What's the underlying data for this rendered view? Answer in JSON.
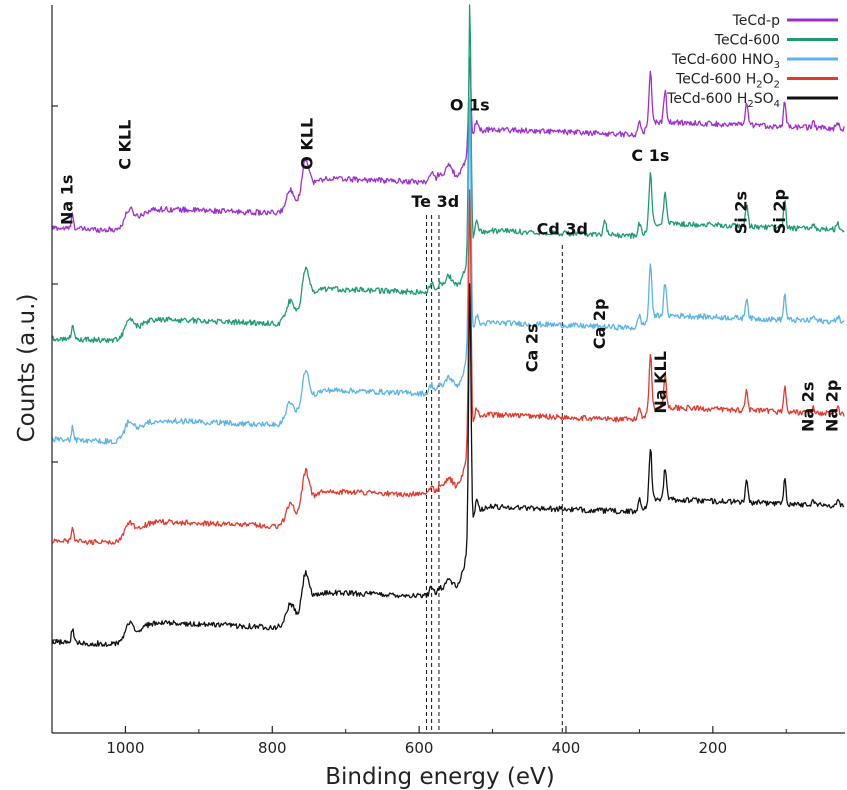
{
  "chart_data": {
    "type": "line",
    "xlabel": "Binding energy (eV)",
    "ylabel": "Counts (a.u.)",
    "xlim": [
      1100,
      20
    ],
    "x_reversed": true,
    "x_ticks": [
      1000,
      800,
      600,
      400,
      200
    ],
    "y_ticks_shown_without_labels": true,
    "grid": false,
    "legend": {
      "placement": "top-right"
    },
    "series": [
      {
        "name": "TeCd-p",
        "color": "#9b30d0",
        "offset": 0.9
      },
      {
        "name": "TeCd-600",
        "color": "#1e9b72",
        "offset": 0.66
      },
      {
        "name": "TeCd-600 HNO",
        "name_sub": "3",
        "color": "#5cb4e6",
        "offset": 0.44
      },
      {
        "name": "TeCd-600 H",
        "name_sub": "2",
        "name_rest": "O",
        "name_sub2": "2",
        "color": "#e03a2e",
        "offset": 0.22
      },
      {
        "name": "TeCd-600 H",
        "name_sub": "2",
        "name_rest": "SO",
        "name_sub2": "4",
        "color": "#111111",
        "offset": 0.0
      }
    ],
    "peak_labels": [
      {
        "text": "Na 1s",
        "x": 1072,
        "y": 1.0,
        "vertical": true
      },
      {
        "text": "C KLL",
        "x": 993,
        "y": 1.12,
        "vertical": true
      },
      {
        "text": "O KLL",
        "x": 745,
        "y": 1.12,
        "vertical": true
      },
      {
        "text": "O 1s",
        "x": 531,
        "y": 1.26,
        "vertical": false
      },
      {
        "text": "Te 3d",
        "x": 578,
        "y": 1.05,
        "vertical": false
      },
      {
        "text": "Cd 3d",
        "x": 405,
        "y": 0.99,
        "vertical": false
      },
      {
        "text": "C 1s",
        "x": 285,
        "y": 1.15,
        "vertical": false
      },
      {
        "text": "Si 2s",
        "x": 154,
        "y": 0.98,
        "vertical": true
      },
      {
        "text": "Si 2p",
        "x": 102,
        "y": 0.98,
        "vertical": true
      },
      {
        "text": "Ca 2s",
        "x": 439,
        "y": 0.68,
        "vertical": true
      },
      {
        "text": "Ca 2p",
        "x": 347,
        "y": 0.73,
        "vertical": true
      },
      {
        "text": "Na KLL",
        "x": 264,
        "y": 0.59,
        "vertical": true
      },
      {
        "text": "Na 2s",
        "x": 63,
        "y": 0.55,
        "vertical": true
      },
      {
        "text": "Na 2p",
        "x": 30,
        "y": 0.55,
        "vertical": true
      }
    ],
    "reference_lines": [
      {
        "x": 583,
        "label_group": "Te 3d"
      },
      {
        "x": 573,
        "label_group": "Te 3d"
      },
      {
        "x": 405,
        "label_group": "Cd 3d"
      }
    ]
  }
}
